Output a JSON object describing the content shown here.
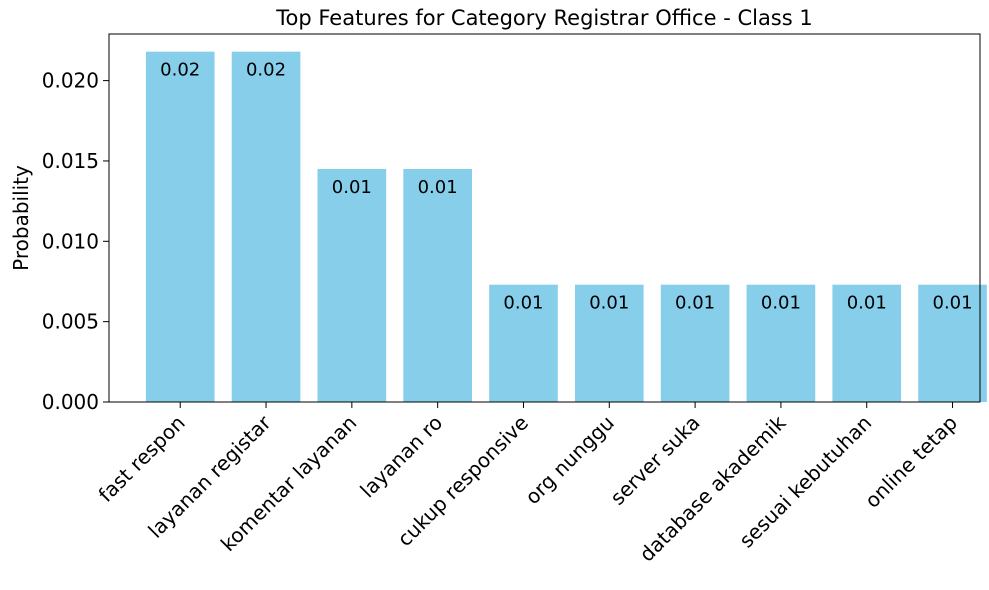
{
  "chart_data": {
    "type": "bar",
    "title": "Top Features for Category Registrar Office - Class 1",
    "xlabel": "",
    "ylabel": "Probability",
    "categories": [
      "fast respon",
      "layanan registar",
      "komentar layanan",
      "layanan ro",
      "cukup responsive",
      "org nunggu",
      "server suka",
      "database akademik",
      "sesuai kebutuhan",
      "online tetap"
    ],
    "values": [
      0.0218,
      0.0218,
      0.0145,
      0.0145,
      0.0073,
      0.0073,
      0.0073,
      0.0073,
      0.0073,
      0.0073
    ],
    "data_labels": [
      "0.02",
      "0.02",
      "0.01",
      "0.01",
      "0.01",
      "0.01",
      "0.01",
      "0.01",
      "0.01",
      "0.01"
    ],
    "yticks": [
      0.0,
      0.005,
      0.01,
      0.015,
      0.02
    ],
    "ytick_labels": [
      "0.000",
      "0.005",
      "0.010",
      "0.015",
      "0.020"
    ],
    "ylim": [
      0,
      0.0229
    ],
    "bar_color": "#87ceeb",
    "grid": false,
    "legend": "none"
  }
}
